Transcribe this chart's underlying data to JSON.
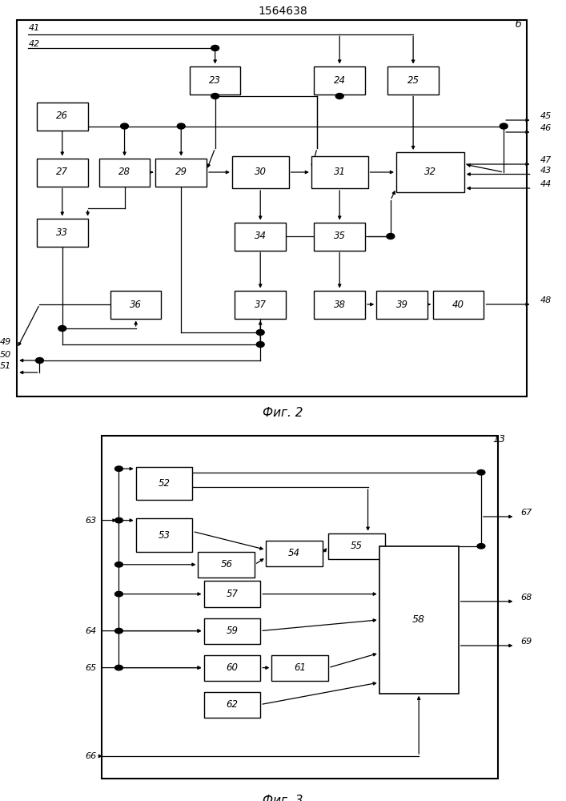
{
  "title": "1564638",
  "fig1_caption": "Фиг. 2",
  "fig2_caption": "Фиг. 3",
  "bg": "#ffffff",
  "lc": "#000000"
}
